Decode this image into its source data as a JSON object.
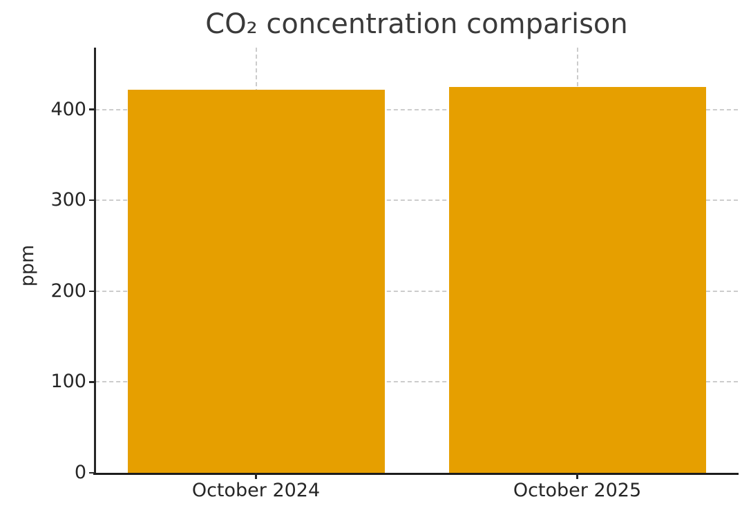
{
  "chart_data": {
    "type": "bar",
    "title": "CO₂ concentration comparison",
    "xlabel": "",
    "ylabel": "ppm",
    "categories": [
      "October 2024",
      "October 2025"
    ],
    "values": [
      422,
      425
    ],
    "yticks": [
      0,
      100,
      200,
      300,
      400
    ],
    "ylim": [
      0,
      468
    ],
    "xlim_note": "two categorical slots, bars centered at 25% and 75% of plot width",
    "bar_width_fraction": 0.8,
    "grid": "dashed horizontal lines at each y tick and dashed vertical lines at bar centers",
    "legend": "none"
  },
  "colors": {
    "bar": "#E69F00",
    "grid": "#cccccc",
    "tick_text": "#262626",
    "title_text": "#3a3a3a",
    "spine": "#262626",
    "background": "#ffffff"
  }
}
